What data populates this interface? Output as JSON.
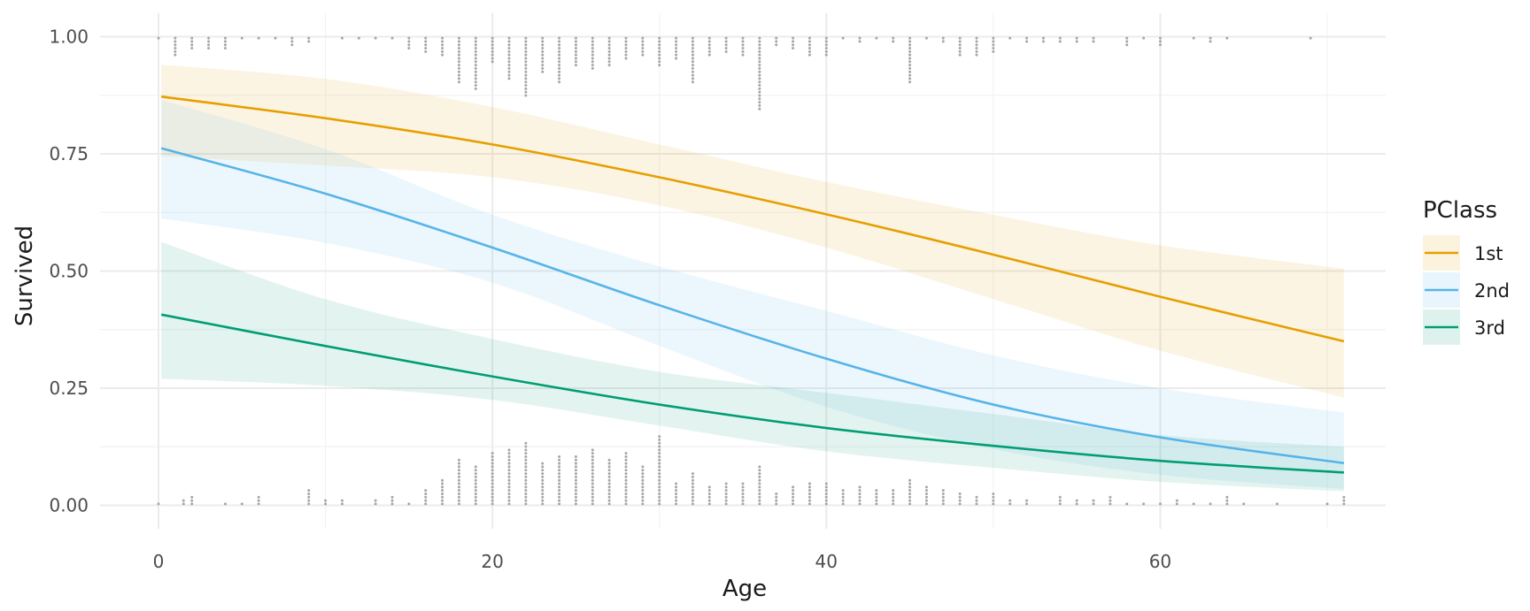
{
  "chart_data": {
    "type": "line",
    "title": "",
    "xlabel": "Age",
    "ylabel": "Survived",
    "xlim": [
      -3.5,
      73.5
    ],
    "ylim": [
      -0.05,
      1.05
    ],
    "x_ticks": [
      0,
      20,
      40,
      60
    ],
    "x_tick_labels": [
      "0",
      "20",
      "40",
      "60"
    ],
    "x_minor_ticks": [
      10,
      30,
      50,
      70
    ],
    "y_ticks": [
      0,
      0.25,
      0.5,
      0.75,
      1.0
    ],
    "y_tick_labels": [
      "0.00",
      "0.25",
      "0.50",
      "0.75",
      "1.00"
    ],
    "y_minor_ticks": [
      0.125,
      0.375,
      0.625,
      0.875
    ],
    "grid": true,
    "legend": {
      "title": "PClass",
      "position": "right"
    },
    "series": [
      {
        "name": "1st",
        "color": "#E69F00",
        "band_color": "#E69F00",
        "x": [
          0.17,
          10,
          20,
          30,
          40,
          50,
          60,
          71
        ],
        "fit": [
          0.872,
          0.826,
          0.77,
          0.7,
          0.621,
          0.535,
          0.445,
          0.35
        ],
        "lower": [
          0.745,
          0.725,
          0.7,
          0.64,
          0.55,
          0.44,
          0.33,
          0.23
        ],
        "upper": [
          0.94,
          0.91,
          0.85,
          0.77,
          0.69,
          0.62,
          0.555,
          0.505
        ]
      },
      {
        "name": "2nd",
        "color": "#56B4E9",
        "band_color": "#56B4E9",
        "x": [
          0.17,
          10,
          20,
          30,
          40,
          50,
          60,
          71
        ],
        "fit": [
          0.762,
          0.665,
          0.55,
          0.427,
          0.313,
          0.215,
          0.145,
          0.09
        ],
        "lower": [
          0.612,
          0.56,
          0.475,
          0.34,
          0.21,
          0.12,
          0.065,
          0.035
        ],
        "upper": [
          0.865,
          0.76,
          0.62,
          0.51,
          0.415,
          0.32,
          0.25,
          0.198
        ]
      },
      {
        "name": "3rd",
        "color": "#009E73",
        "band_color": "#009E73",
        "x": [
          0.17,
          10,
          20,
          30,
          40,
          50,
          60,
          71
        ],
        "fit": [
          0.407,
          0.34,
          0.275,
          0.215,
          0.165,
          0.127,
          0.095,
          0.07
        ],
        "lower": [
          0.27,
          0.255,
          0.225,
          0.17,
          0.115,
          0.08,
          0.05,
          0.03
        ],
        "upper": [
          0.562,
          0.44,
          0.355,
          0.285,
          0.24,
          0.195,
          0.15,
          0.125
        ]
      }
    ],
    "rug_survived": [
      [
        0,
        1
      ],
      [
        1,
        6
      ],
      [
        2,
        4
      ],
      [
        3,
        4
      ],
      [
        4,
        4
      ],
      [
        5,
        1
      ],
      [
        6,
        1
      ],
      [
        7,
        1
      ],
      [
        8,
        3
      ],
      [
        9,
        2
      ],
      [
        11,
        1
      ],
      [
        12,
        1
      ],
      [
        13,
        1
      ],
      [
        14,
        1
      ],
      [
        15,
        4
      ],
      [
        16,
        5
      ],
      [
        17,
        6
      ],
      [
        18,
        14
      ],
      [
        19,
        16
      ],
      [
        20,
        8
      ],
      [
        21,
        13
      ],
      [
        22,
        18
      ],
      [
        23,
        11
      ],
      [
        24,
        14
      ],
      [
        25,
        9
      ],
      [
        26,
        10
      ],
      [
        27,
        9
      ],
      [
        28,
        7
      ],
      [
        29,
        6
      ],
      [
        30,
        9
      ],
      [
        31,
        7
      ],
      [
        32,
        14
      ],
      [
        33,
        6
      ],
      [
        34,
        5
      ],
      [
        35,
        6
      ],
      [
        36,
        22
      ],
      [
        37,
        3
      ],
      [
        38,
        4
      ],
      [
        39,
        6
      ],
      [
        40,
        6
      ],
      [
        41,
        1
      ],
      [
        42,
        2
      ],
      [
        43,
        1
      ],
      [
        44,
        2
      ],
      [
        45,
        14
      ],
      [
        46,
        1
      ],
      [
        47,
        2
      ],
      [
        48,
        6
      ],
      [
        49,
        6
      ],
      [
        50,
        5
      ],
      [
        51,
        1
      ],
      [
        52,
        2
      ],
      [
        53,
        2
      ],
      [
        54,
        2
      ],
      [
        55,
        2
      ],
      [
        56,
        2
      ],
      [
        58,
        3
      ],
      [
        59,
        1
      ],
      [
        60,
        3
      ],
      [
        62,
        1
      ],
      [
        63,
        2
      ],
      [
        64,
        1
      ],
      [
        69,
        1
      ]
    ],
    "rug_died": [
      [
        0,
        1
      ],
      [
        1.5,
        2
      ],
      [
        2,
        3
      ],
      [
        4,
        1
      ],
      [
        5,
        1
      ],
      [
        6,
        3
      ],
      [
        9,
        5
      ],
      [
        10,
        2
      ],
      [
        11,
        2
      ],
      [
        13,
        2
      ],
      [
        14,
        3
      ],
      [
        15,
        1
      ],
      [
        16,
        5
      ],
      [
        17,
        8
      ],
      [
        18,
        14
      ],
      [
        19,
        12
      ],
      [
        20,
        16
      ],
      [
        21,
        17
      ],
      [
        22,
        19
      ],
      [
        23,
        13
      ],
      [
        24,
        15
      ],
      [
        25,
        15
      ],
      [
        26,
        17
      ],
      [
        27,
        14
      ],
      [
        28,
        16
      ],
      [
        29,
        12
      ],
      [
        30,
        21
      ],
      [
        31,
        7
      ],
      [
        32,
        10
      ],
      [
        33,
        6
      ],
      [
        34,
        7
      ],
      [
        35,
        7
      ],
      [
        36,
        12
      ],
      [
        37,
        4
      ],
      [
        38,
        6
      ],
      [
        39,
        7
      ],
      [
        40,
        7
      ],
      [
        41,
        5
      ],
      [
        42,
        6
      ],
      [
        43,
        5
      ],
      [
        44,
        5
      ],
      [
        45,
        8
      ],
      [
        46,
        6
      ],
      [
        47,
        5
      ],
      [
        48,
        4
      ],
      [
        49,
        3
      ],
      [
        50,
        4
      ],
      [
        51,
        2
      ],
      [
        52,
        2
      ],
      [
        54,
        3
      ],
      [
        55,
        2
      ],
      [
        56,
        2
      ],
      [
        57,
        3
      ],
      [
        58,
        1
      ],
      [
        59,
        1
      ],
      [
        60,
        1
      ],
      [
        61,
        2
      ],
      [
        62,
        1
      ],
      [
        63,
        1
      ],
      [
        64,
        3
      ],
      [
        65,
        1
      ],
      [
        67,
        1
      ],
      [
        70,
        1
      ],
      [
        71,
        3
      ]
    ]
  }
}
